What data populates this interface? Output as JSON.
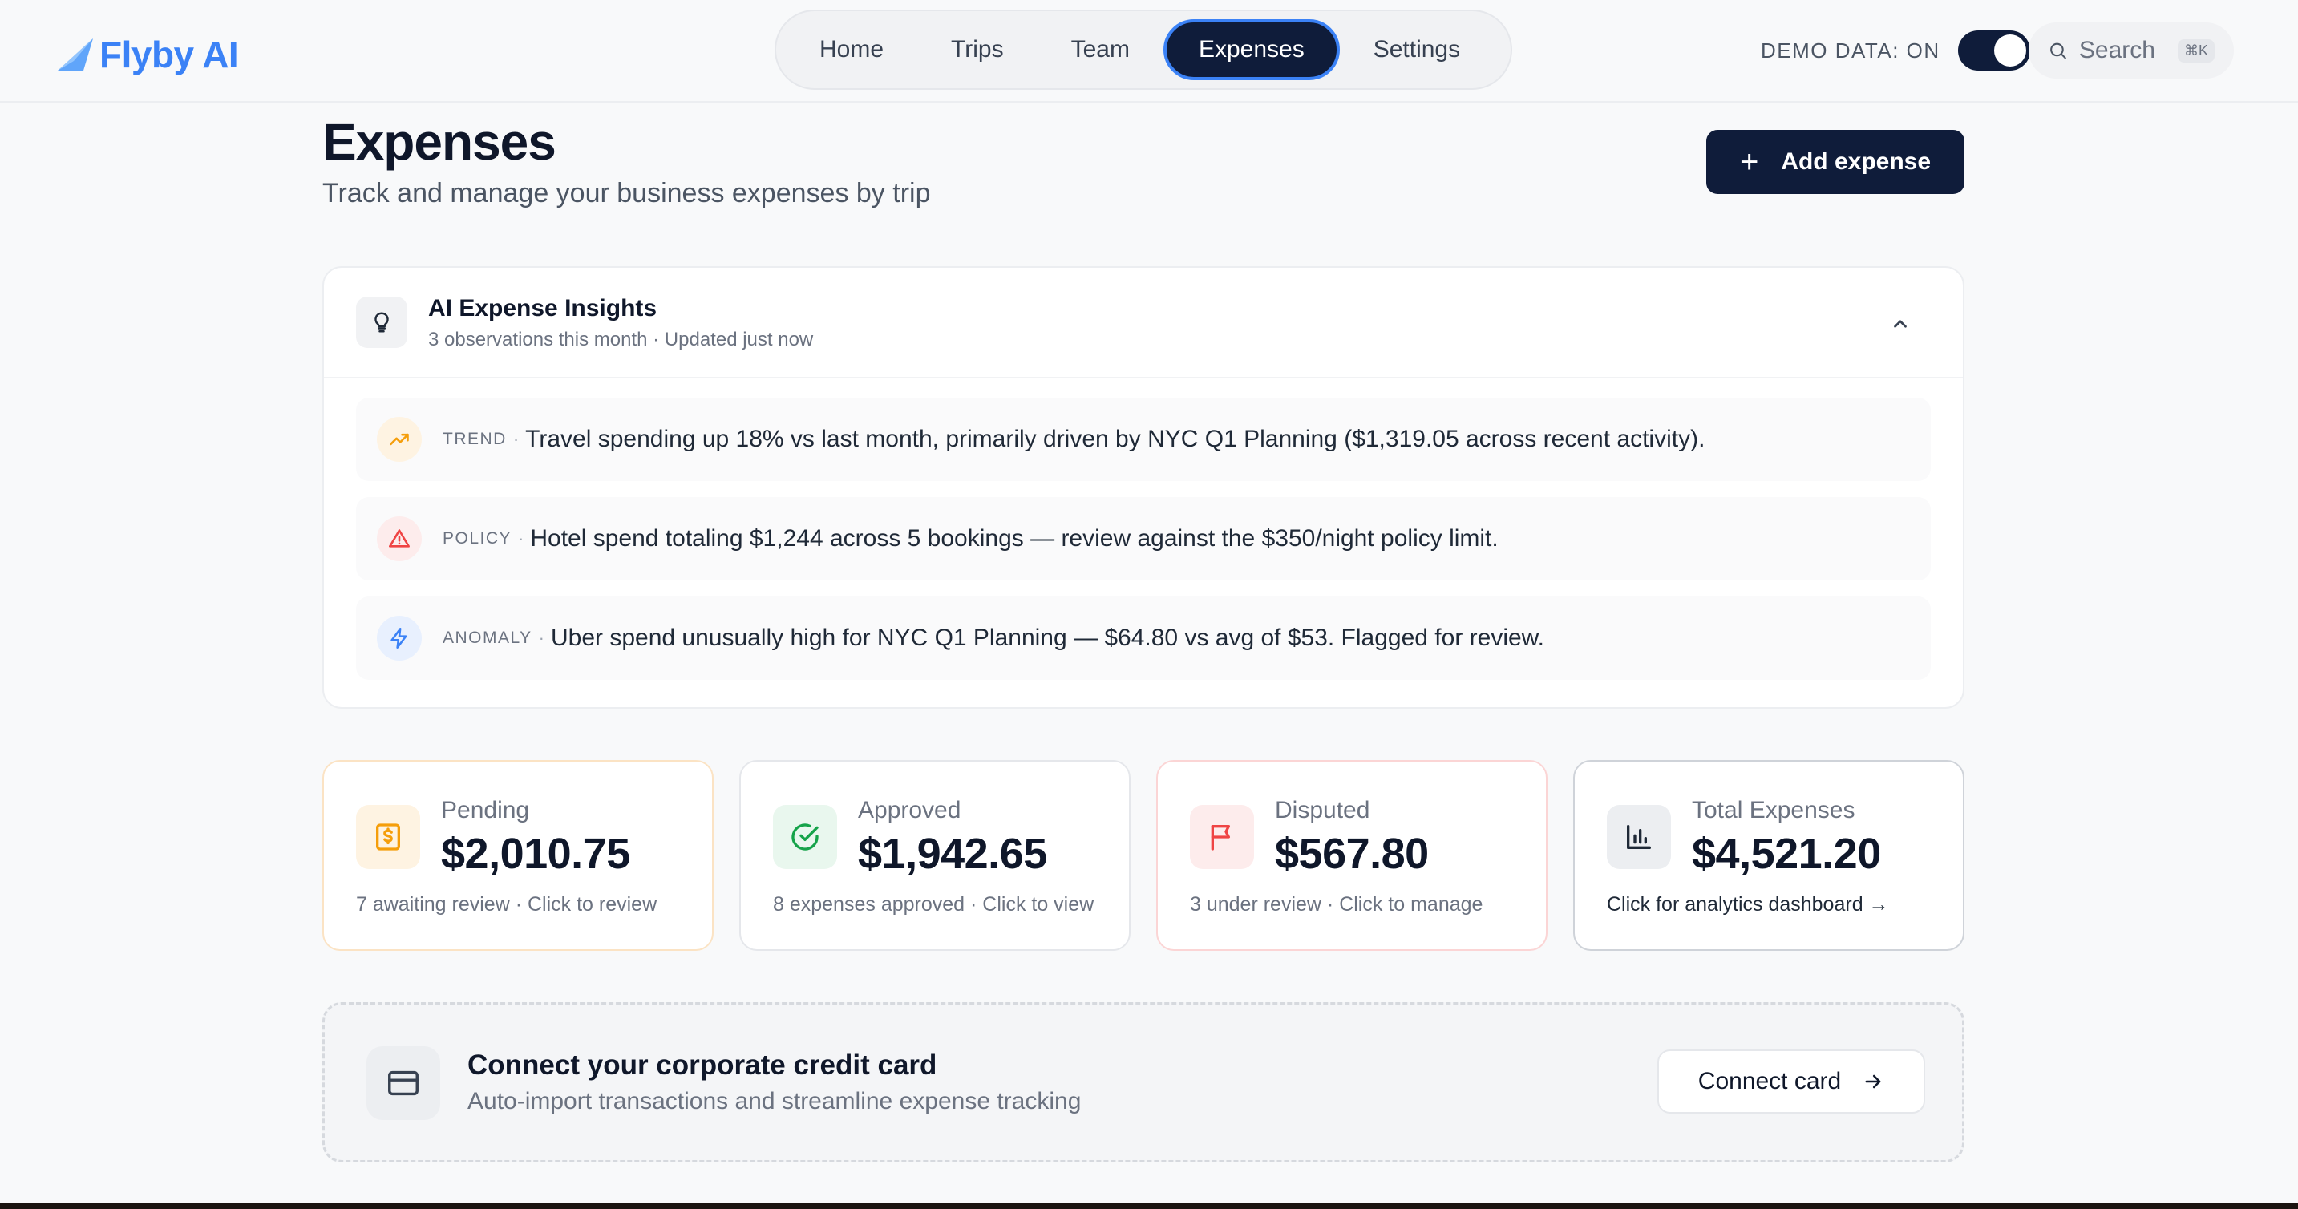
{
  "app": {
    "brand": "Flyby AI"
  },
  "nav": {
    "items": [
      {
        "label": "Home",
        "active": false
      },
      {
        "label": "Trips",
        "active": false
      },
      {
        "label": "Team",
        "active": false
      },
      {
        "label": "Expenses",
        "active": true
      },
      {
        "label": "Settings",
        "active": false
      }
    ]
  },
  "demo": {
    "label": "DEMO DATA: ON",
    "enabled": true
  },
  "search": {
    "label": "Search",
    "shortcut": "⌘K"
  },
  "page": {
    "title": "Expenses",
    "subtitle": "Track and manage your business expenses by trip",
    "add_button": "Add expense"
  },
  "insights": {
    "title": "AI Expense Insights",
    "meta": "3 observations this month · Updated just now",
    "items": [
      {
        "tag": "TREND",
        "icon": "trend-up-icon",
        "color": "#f59e0b",
        "text": "Travel spending up 18% vs last month, primarily driven by NYC Q1 Planning ($1,319.05 across recent activity)."
      },
      {
        "tag": "POLICY",
        "icon": "warning-icon",
        "color": "#ef4444",
        "text": "Hotel spend totaling $1,244 across 5 bookings — review against the $350/night policy limit."
      },
      {
        "tag": "ANOMALY",
        "icon": "lightning-icon",
        "color": "#3b82f6",
        "text": "Uber spend unusually high for NYC Q1 Planning — $64.80 vs avg of $53. Flagged for review."
      }
    ]
  },
  "stats": [
    {
      "label": "Pending",
      "value": "$2,010.75",
      "foot": "7 awaiting review · Click to review",
      "icon": "dollar-document-icon",
      "accent": "#f59e0b"
    },
    {
      "label": "Approved",
      "value": "$1,942.65",
      "foot": "8 expenses approved · Click to view",
      "icon": "check-circle-icon",
      "accent": "#16a34a"
    },
    {
      "label": "Disputed",
      "value": "$567.80",
      "foot": "3 under review · Click to manage",
      "icon": "flag-icon",
      "accent": "#ef4444"
    },
    {
      "label": "Total Expenses",
      "value": "$4,521.20",
      "foot": "Click for analytics dashboard →",
      "icon": "bar-chart-icon",
      "accent": "#374151"
    }
  ],
  "connect": {
    "title": "Connect your corporate credit card",
    "subtitle": "Auto-import transactions and streamline expense tracking",
    "button": "Connect card"
  }
}
